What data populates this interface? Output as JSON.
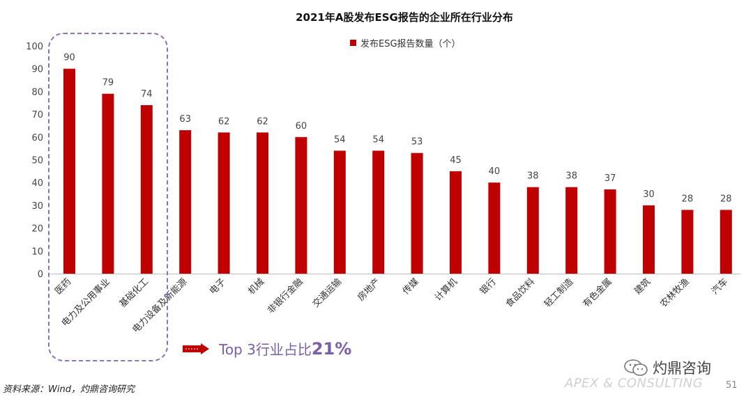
{
  "chart_data": {
    "type": "bar",
    "title": "2021年A股发布ESG报告的企业所在行业分布",
    "legend": "发布ESG报告数量（个）",
    "categories": [
      "医药",
      "电力及公用事业",
      "基础化工",
      "电力设备及新能源",
      "电子",
      "机械",
      "非银行金融",
      "交通运输",
      "房地产",
      "传媒",
      "计算机",
      "银行",
      "食品饮料",
      "轻工制造",
      "有色金属",
      "建筑",
      "农林牧渔",
      "汽车"
    ],
    "values": [
      90,
      79,
      74,
      63,
      62,
      62,
      60,
      54,
      54,
      53,
      45,
      40,
      38,
      38,
      37,
      30,
      28,
      28
    ],
    "ylim": [
      0,
      100
    ],
    "yticks": [
      0,
      10,
      20,
      30,
      40,
      50,
      60,
      70,
      80,
      90,
      100
    ],
    "color": "#c00000",
    "grid": false
  },
  "callout": {
    "text": "Top 3行业占比",
    "value": "21%"
  },
  "brand": {
    "name": "灼鼎咨询",
    "icon": "wechat-icon"
  },
  "watermark": "APEX & CONSULTING",
  "page_number": "51",
  "source": "资料来源：Wind，灼鼎咨询研究"
}
